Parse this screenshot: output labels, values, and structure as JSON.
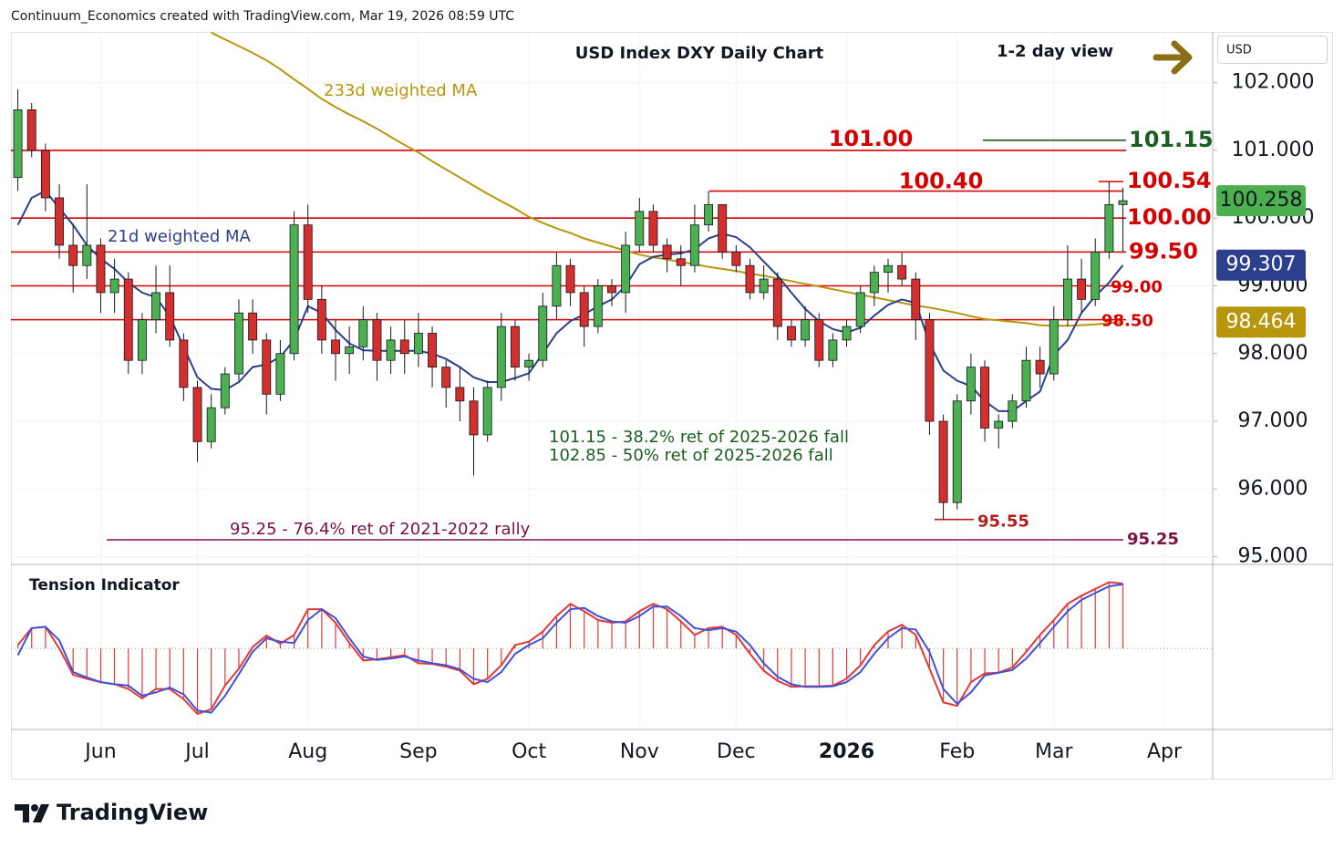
{
  "header": {
    "credit": "Continuum_Economics created with TradingView.com, Mar 19, 2026 08:59 UTC"
  },
  "footer": {
    "brand": "TradingView"
  },
  "chart_data": [
    {
      "type": "candlestick",
      "title": "USD Index DXY Daily Chart",
      "subtitle": "1-2 day view",
      "y_axis_label": "USD",
      "categories": [
        null,
        null,
        null,
        null,
        null,
        null,
        "Jun",
        null,
        null,
        null,
        null,
        null,
        null,
        "Jul",
        null,
        null,
        null,
        null,
        null,
        null,
        null,
        "Aug",
        null,
        null,
        null,
        null,
        null,
        null,
        null,
        "Sep",
        null,
        null,
        null,
        null,
        null,
        null,
        null,
        "Oct",
        null,
        null,
        null,
        null,
        null,
        null,
        null,
        "Nov",
        null,
        null,
        null,
        null,
        null,
        null,
        "Dec",
        null,
        null,
        null,
        null,
        null,
        null,
        null,
        "2026",
        null,
        null,
        null,
        null,
        null,
        null,
        null,
        "Feb",
        null,
        null,
        null,
        null,
        null,
        null,
        "Mar",
        null,
        null,
        null,
        null,
        null,
        null,
        null,
        "Apr",
        null,
        null,
        null
      ],
      "open": [
        100.6,
        101.6,
        101.0,
        100.3,
        99.6,
        99.3,
        99.6,
        98.9,
        99.1,
        97.9,
        98.5,
        98.9,
        98.2,
        97.5,
        96.7,
        97.2,
        97.7,
        98.6,
        98.2,
        97.4,
        98.0,
        99.9,
        98.8,
        98.2,
        98.0,
        98.1,
        98.5,
        97.9,
        98.2,
        98.0,
        98.3,
        97.8,
        97.5,
        97.3,
        96.8,
        97.5,
        98.4,
        97.8,
        97.9,
        98.7,
        99.3,
        98.9,
        98.4,
        99.0,
        98.9,
        99.6,
        100.1,
        99.6,
        99.4,
        99.3,
        99.9,
        100.2,
        99.5,
        99.3,
        98.9,
        99.1,
        98.4,
        98.2,
        98.5,
        97.9,
        98.2,
        98.4,
        98.9,
        99.2,
        99.3,
        99.1,
        98.5,
        97.0,
        95.8,
        97.3,
        97.8,
        96.9,
        97.0,
        97.3,
        97.9,
        97.7,
        98.5,
        99.1,
        98.8,
        99.5,
        100.2,
        null,
        null,
        null,
        null,
        null,
        null
      ],
      "high": [
        101.9,
        101.7,
        101.1,
        100.5,
        99.9,
        100.5,
        99.7,
        99.4,
        99.2,
        98.6,
        99.3,
        99.3,
        98.3,
        97.6,
        97.4,
        97.8,
        98.8,
        98.8,
        98.3,
        98.2,
        100.1,
        100.2,
        99.0,
        98.5,
        98.4,
        98.7,
        98.6,
        98.4,
        98.5,
        98.6,
        98.4,
        97.9,
        97.8,
        97.5,
        97.6,
        98.6,
        98.5,
        98.0,
        98.9,
        99.5,
        99.4,
        99.0,
        99.1,
        99.1,
        99.8,
        100.3,
        100.2,
        99.7,
        99.6,
        100.2,
        100.4,
        100.2,
        99.6,
        99.4,
        99.3,
        99.2,
        98.5,
        98.7,
        98.6,
        98.3,
        98.5,
        99.0,
        99.3,
        99.4,
        99.5,
        99.2,
        98.6,
        97.1,
        97.4,
        98.0,
        97.9,
        97.1,
        97.4,
        98.1,
        98.1,
        98.7,
        99.6,
        99.4,
        99.7,
        100.54,
        100.45,
        null,
        null,
        null,
        null,
        null,
        null
      ],
      "low": [
        100.4,
        100.9,
        100.1,
        99.4,
        98.9,
        99.1,
        98.6,
        98.6,
        97.7,
        97.7,
        98.3,
        98.1,
        97.3,
        96.4,
        96.6,
        97.1,
        97.6,
        98.0,
        97.1,
        97.3,
        97.9,
        98.6,
        98.0,
        97.6,
        97.7,
        97.9,
        97.6,
        97.7,
        97.7,
        97.8,
        97.5,
        97.2,
        97.0,
        96.2,
        96.7,
        97.3,
        97.6,
        97.6,
        97.8,
        98.5,
        98.7,
        98.1,
        98.3,
        98.7,
        98.6,
        99.5,
        99.5,
        99.2,
        99.0,
        99.2,
        99.8,
        99.4,
        99.2,
        98.8,
        98.8,
        98.2,
        98.1,
        98.1,
        97.8,
        97.8,
        98.1,
        98.3,
        98.7,
        98.9,
        99.0,
        98.2,
        96.8,
        95.55,
        95.7,
        97.1,
        96.7,
        96.6,
        96.9,
        97.2,
        97.5,
        97.6,
        98.4,
        98.6,
        98.7,
        99.4,
        99.5,
        null,
        null,
        null,
        null,
        null,
        null
      ],
      "close": [
        101.6,
        101.0,
        100.3,
        99.6,
        99.3,
        99.6,
        98.9,
        99.1,
        97.9,
        98.5,
        98.9,
        98.2,
        97.5,
        96.7,
        97.2,
        97.7,
        98.6,
        98.2,
        97.4,
        98.0,
        99.9,
        98.8,
        98.2,
        98.0,
        98.1,
        98.5,
        97.9,
        98.2,
        98.0,
        98.3,
        97.8,
        97.5,
        97.3,
        96.8,
        97.5,
        98.4,
        97.8,
        97.9,
        98.7,
        99.3,
        98.9,
        98.4,
        99.0,
        98.9,
        99.6,
        100.1,
        99.6,
        99.4,
        99.3,
        99.9,
        100.2,
        99.5,
        99.3,
        98.9,
        99.1,
        98.4,
        98.2,
        98.5,
        97.9,
        98.2,
        98.4,
        98.9,
        99.2,
        99.3,
        99.1,
        98.5,
        97.0,
        95.8,
        97.3,
        97.8,
        96.9,
        97.0,
        97.3,
        97.9,
        97.7,
        98.5,
        99.1,
        98.8,
        99.5,
        100.2,
        100.258,
        null,
        null,
        null,
        null,
        null,
        null
      ],
      "up_color": "#4caf50",
      "down_color": "#d32f2f",
      "lines": [
        {
          "name": "233d weighted MA",
          "color": "#b8960c",
          "values": [
            null,
            null,
            null,
            null,
            null,
            null,
            null,
            null,
            null,
            null,
            null,
            null,
            null,
            null,
            102.74,
            102.64,
            102.54,
            102.44,
            102.33,
            102.2,
            102.05,
            101.91,
            101.76,
            101.64,
            101.53,
            101.43,
            101.32,
            101.2,
            101.08,
            100.97,
            100.84,
            100.72,
            100.6,
            100.48,
            100.36,
            100.25,
            100.14,
            100.02,
            99.93,
            99.85,
            99.78,
            99.7,
            99.64,
            99.58,
            99.52,
            99.46,
            99.42,
            99.39,
            99.35,
            99.32,
            99.28,
            99.25,
            99.22,
            99.18,
            99.15,
            99.11,
            99.07,
            99.03,
            98.99,
            98.95,
            98.91,
            98.87,
            98.83,
            98.79,
            98.75,
            98.71,
            98.68,
            98.64,
            98.6,
            98.55,
            98.51,
            98.49,
            98.47,
            98.45,
            98.42,
            98.41,
            98.41,
            98.42,
            98.43,
            98.45,
            98.464,
            null,
            null,
            null,
            null,
            null,
            null
          ]
        },
        {
          "name": "21d weighted MA",
          "color": "#2b3f8c",
          "values": [
            99.9,
            100.3,
            100.4,
            100.15,
            99.9,
            99.6,
            99.4,
            99.25,
            99.05,
            98.9,
            98.83,
            98.55,
            98.1,
            97.65,
            97.48,
            97.46,
            97.58,
            97.8,
            97.84,
            97.95,
            98.2,
            98.7,
            98.6,
            98.35,
            98.15,
            98.05,
            98.04,
            98.04,
            98.04,
            98.04,
            98.0,
            97.92,
            97.8,
            97.65,
            97.58,
            97.58,
            97.64,
            97.71,
            98.0,
            98.3,
            98.48,
            98.58,
            98.7,
            98.8,
            99.0,
            99.32,
            99.43,
            99.46,
            99.48,
            99.54,
            99.7,
            99.77,
            99.72,
            99.57,
            99.36,
            99.15,
            98.9,
            98.66,
            98.48,
            98.36,
            98.31,
            98.38,
            98.56,
            98.72,
            98.8,
            98.75,
            98.15,
            97.75,
            97.6,
            97.52,
            97.3,
            97.15,
            97.15,
            97.3,
            97.44,
            97.98,
            98.2,
            98.6,
            98.85,
            99.05,
            99.307,
            null,
            null,
            null,
            null,
            null,
            null
          ]
        }
      ],
      "levels": [
        {
          "value": 101,
          "label": "101.00",
          "color": "#d50000"
        },
        {
          "value": 100.54,
          "label": "100.54",
          "color": "#d50000"
        },
        {
          "value": 100.4,
          "label": "100.40",
          "color": "#d50000"
        },
        {
          "value": 100,
          "label": "100.00",
          "color": "#d50000"
        },
        {
          "value": 99.5,
          "label": "99.50",
          "color": "#d50000"
        },
        {
          "value": 99,
          "label": "99.00",
          "color": "#d50000"
        },
        {
          "value": 98.5,
          "label": "98.50",
          "color": "#d50000"
        },
        {
          "value": 101.15,
          "label": "101.15",
          "color": "#1b5e20"
        },
        {
          "value": 95.55,
          "label": "95.55",
          "color": "#b71c1c"
        },
        {
          "value": 95.25,
          "label": "95.25",
          "color": "#7b1245"
        }
      ],
      "annotations": [
        {
          "text": "101.15 - 38.2% ret of 2025-2026 fall",
          "color": "#1b5e20"
        },
        {
          "text": "102.85 - 50% ret of 2025-2026 fall",
          "color": "#1b5e20"
        },
        {
          "text": "95.25 - 76.4% ret of 2021-2022 rally",
          "color": "#7b1245"
        }
      ],
      "ylim": [
        94.9,
        102.75
      ],
      "yticks": [
        {
          "value": 95,
          "label": "95.000"
        },
        {
          "value": 96,
          "label": "96.000"
        },
        {
          "value": 97,
          "label": "97.000"
        },
        {
          "value": 98,
          "label": "98.000"
        },
        {
          "value": 99,
          "label": "99.000"
        },
        {
          "value": 100,
          "label": "100.000"
        },
        {
          "value": 101,
          "label": "101.000"
        },
        {
          "value": 102,
          "label": "102.000"
        }
      ],
      "grid": true
    },
    {
      "type": "oscillator",
      "title": "Tension Indicator",
      "ylim": [
        -1.2,
        1.23
      ],
      "series": [
        {
          "color": "#e53935",
          "style": "histogram",
          "values": [
            0.05,
            0.3,
            0.32,
            0.0,
            -0.39,
            -0.45,
            -0.5,
            -0.53,
            -0.6,
            -0.74,
            -0.6,
            -0.6,
            -0.75,
            -0.97,
            -0.9,
            -0.55,
            -0.3,
            0.02,
            0.19,
            0.07,
            0.2,
            0.58,
            0.58,
            0.38,
            0.08,
            -0.18,
            -0.16,
            -0.13,
            -0.1,
            -0.22,
            -0.23,
            -0.27,
            -0.33,
            -0.53,
            -0.45,
            -0.25,
            0.05,
            0.1,
            0.25,
            0.48,
            0.66,
            0.55,
            0.42,
            0.38,
            0.4,
            0.55,
            0.66,
            0.58,
            0.4,
            0.2,
            0.3,
            0.32,
            0.2,
            -0.08,
            -0.33,
            -0.48,
            -0.57,
            -0.56,
            -0.56,
            -0.55,
            -0.45,
            -0.25,
            0.05,
            0.25,
            0.35,
            0.2,
            -0.3,
            -0.8,
            -0.85,
            -0.5,
            -0.37,
            -0.36,
            -0.28,
            -0.05,
            0.2,
            0.42,
            0.66,
            0.78,
            0.88,
            0.98,
            0.96,
            null,
            null,
            null,
            null,
            null,
            null
          ]
        },
        {
          "color": "#3f51d8",
          "style": "line",
          "values": [
            -0.1,
            0.3,
            0.32,
            0.12,
            -0.35,
            -0.43,
            -0.5,
            -0.53,
            -0.55,
            -0.7,
            -0.65,
            -0.58,
            -0.68,
            -0.92,
            -0.95,
            -0.7,
            -0.38,
            -0.05,
            0.15,
            0.1,
            0.08,
            0.42,
            0.58,
            0.45,
            0.15,
            -0.12,
            -0.17,
            -0.15,
            -0.12,
            -0.18,
            -0.22,
            -0.25,
            -0.31,
            -0.45,
            -0.5,
            -0.35,
            -0.08,
            0.05,
            0.15,
            0.38,
            0.58,
            0.6,
            0.48,
            0.4,
            0.38,
            0.48,
            0.62,
            0.62,
            0.48,
            0.3,
            0.27,
            0.3,
            0.25,
            0.05,
            -0.22,
            -0.42,
            -0.53,
            -0.57,
            -0.57,
            -0.56,
            -0.5,
            -0.35,
            -0.08,
            0.15,
            0.3,
            0.28,
            -0.05,
            -0.6,
            -0.82,
            -0.65,
            -0.4,
            -0.36,
            -0.32,
            -0.15,
            0.08,
            0.32,
            0.55,
            0.72,
            0.82,
            0.92,
            0.95,
            null,
            null,
            null,
            null,
            null,
            null
          ]
        }
      ]
    }
  ]
}
